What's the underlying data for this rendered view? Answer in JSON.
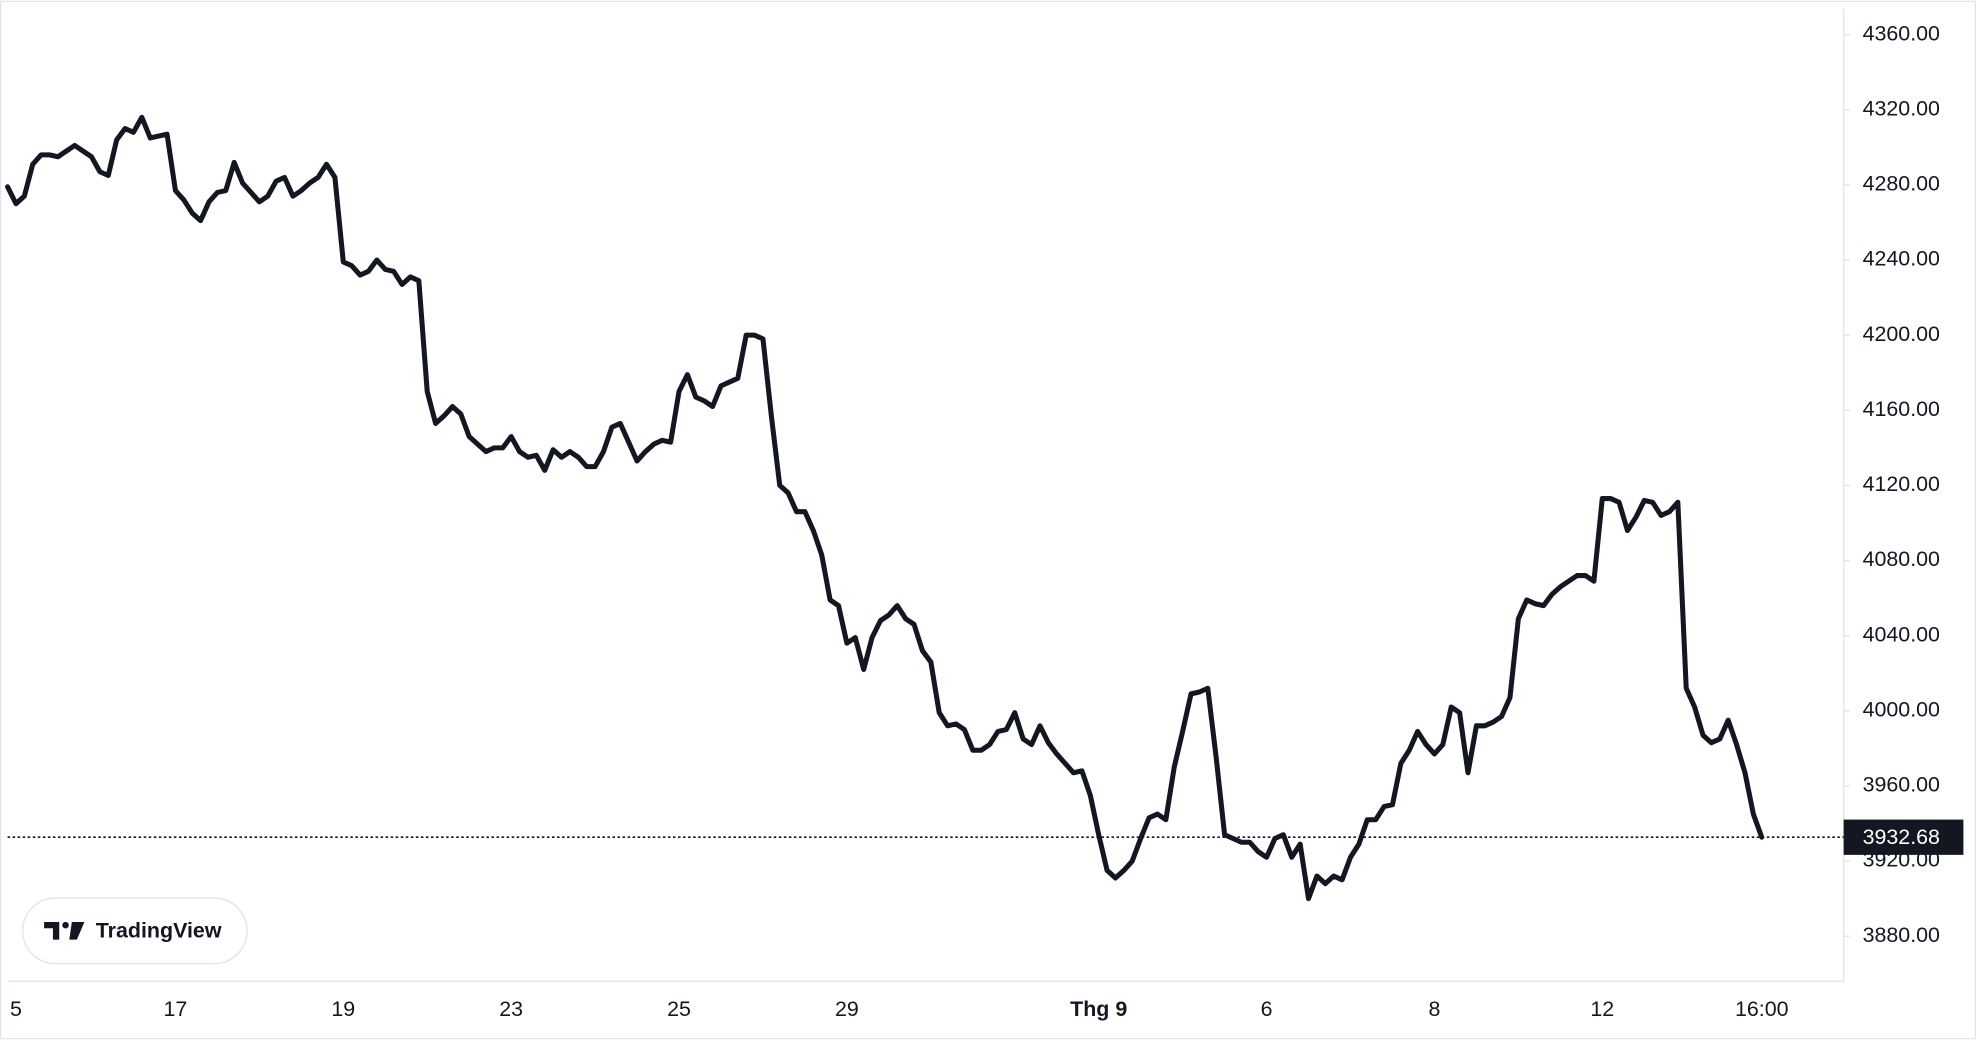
{
  "logo_text": "TradingView",
  "chart_data": {
    "type": "line",
    "categories": [
      null,
      "5",
      null,
      null,
      null,
      null,
      null,
      null,
      null,
      null,
      null,
      null,
      null,
      null,
      null,
      null,
      null,
      null,
      null,
      null,
      "17",
      null,
      null,
      null,
      null,
      null,
      null,
      null,
      null,
      null,
      null,
      null,
      null,
      null,
      null,
      null,
      null,
      null,
      null,
      null,
      "19",
      null,
      null,
      null,
      null,
      null,
      null,
      null,
      null,
      null,
      null,
      null,
      null,
      null,
      null,
      null,
      null,
      null,
      null,
      null,
      "23",
      null,
      null,
      null,
      null,
      null,
      null,
      null,
      null,
      null,
      null,
      null,
      null,
      null,
      null,
      null,
      null,
      null,
      null,
      null,
      "25",
      null,
      null,
      null,
      null,
      null,
      null,
      null,
      null,
      null,
      null,
      null,
      null,
      null,
      null,
      null,
      null,
      null,
      null,
      null,
      "29",
      null,
      null,
      null,
      null,
      null,
      null,
      null,
      null,
      null,
      null,
      null,
      null,
      null,
      null,
      null,
      null,
      null,
      null,
      null,
      null,
      null,
      null,
      null,
      null,
      null,
      null,
      null,
      null,
      null,
      "Thg 9",
      null,
      null,
      null,
      null,
      null,
      null,
      null,
      null,
      null,
      null,
      null,
      null,
      null,
      null,
      null,
      null,
      null,
      null,
      null,
      "6",
      null,
      null,
      null,
      null,
      null,
      null,
      null,
      null,
      null,
      null,
      null,
      null,
      null,
      null,
      null,
      null,
      null,
      null,
      null,
      "8",
      null,
      null,
      null,
      null,
      null,
      null,
      null,
      null,
      null,
      null,
      null,
      null,
      null,
      null,
      null,
      null,
      null,
      null,
      null,
      "12",
      null,
      null,
      null,
      null,
      null,
      null,
      null,
      null,
      null,
      null,
      null,
      null,
      null,
      null,
      null,
      null,
      null,
      null,
      "16:00"
    ],
    "series": [
      {
        "color": "#131722",
        "values": [
          4279,
          4270,
          4274,
          4291,
          4296,
          4296,
          4295,
          4298,
          4301,
          4298,
          4295,
          4287,
          4285,
          4304,
          4310,
          4308,
          4316,
          4305,
          4306,
          4307,
          4277,
          4272,
          4265,
          4261,
          4271,
          4276,
          4277,
          4292,
          4281,
          4276,
          4271,
          4274,
          4282,
          4284,
          4274,
          4277,
          4281,
          4284,
          4291,
          4284,
          4239,
          4237,
          4232,
          4234,
          4240,
          4235,
          4234,
          4227,
          4231,
          4229,
          4170,
          4153,
          4157,
          4162,
          4158,
          4146,
          4142,
          4138,
          4140,
          4140,
          4146,
          4138,
          4135,
          4136,
          4128,
          4139,
          4135,
          4138,
          4135,
          4130,
          4130,
          4138,
          4151,
          4153,
          4143,
          4133,
          4138,
          4142,
          4144,
          4143,
          4170,
          4179,
          4167,
          4165,
          4162,
          4173,
          4175,
          4177,
          4200,
          4200,
          4198,
          4157,
          4120,
          4116,
          4106,
          4106,
          4096,
          4083,
          4059,
          4056,
          4036,
          4039,
          4022,
          4039,
          4048,
          4051,
          4056,
          4049,
          4046,
          4032,
          4026,
          3999,
          3992,
          3993,
          3990,
          3979,
          3979,
          3982,
          3989,
          3990,
          3999,
          3985,
          3982,
          3992,
          3983,
          3977,
          3972,
          3967,
          3968,
          3955,
          3934,
          3915,
          3911,
          3915,
          3920,
          3932,
          3943,
          3945,
          3942,
          3970,
          3989,
          4009,
          4010,
          4012,
          3975,
          3934,
          3932,
          3930,
          3930,
          3925,
          3922,
          3932,
          3934,
          3922,
          3929,
          3900,
          3912,
          3908,
          3912,
          3910,
          3922,
          3929,
          3942,
          3942,
          3949,
          3950,
          3972,
          3979,
          3989,
          3982,
          3977,
          3982,
          4002,
          3999,
          3967,
          3992,
          3992,
          3994,
          3997,
          4007,
          4049,
          4059,
          4057,
          4056,
          4062,
          4066,
          4069,
          4072,
          4072,
          4069,
          4113,
          4113,
          4111,
          4096,
          4103,
          4112,
          4111,
          4104,
          4106,
          4111,
          4012,
          4002,
          3987,
          3983,
          3985,
          3995,
          3982,
          3967,
          3945,
          3932.68
        ]
      }
    ],
    "ylim": [
      3856,
      4374
    ],
    "yticks": [
      {
        "value": 3880,
        "label": "3880.00"
      },
      {
        "value": 3920,
        "label": "3920.00"
      },
      {
        "value": 3960,
        "label": "3960.00"
      },
      {
        "value": 4000,
        "label": "4000.00"
      },
      {
        "value": 4040,
        "label": "4040.00"
      },
      {
        "value": 4080,
        "label": "4080.00"
      },
      {
        "value": 4120,
        "label": "4120.00"
      },
      {
        "value": 4160,
        "label": "4160.00"
      },
      {
        "value": 4200,
        "label": "4200.00"
      },
      {
        "value": 4240,
        "label": "4240.00"
      },
      {
        "value": 4280,
        "label": "4280.00"
      },
      {
        "value": 4320,
        "label": "4320.00"
      },
      {
        "value": 4360,
        "label": "4360.00"
      }
    ],
    "grid": false
  }
}
